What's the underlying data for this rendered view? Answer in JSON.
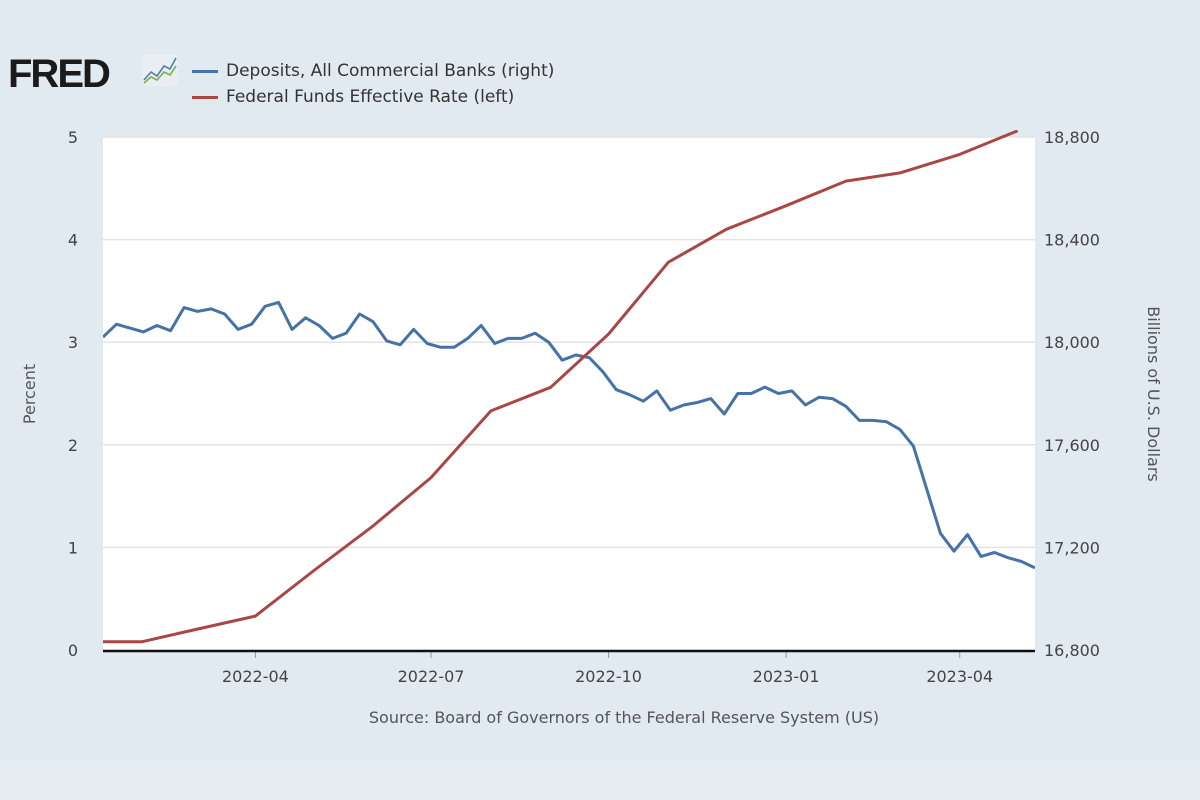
{
  "logo_text": "FRED",
  "chart_data": {
    "type": "line",
    "source": "Source: Board of Governors of the Federal Reserve System (US)",
    "ylabel_left": "Percent",
    "ylabel_right": "Billions of U.S. Dollars",
    "ylim_left": [
      0,
      5
    ],
    "ylim_right": [
      16800,
      18800
    ],
    "yticks_left": [
      "0",
      "1",
      "2",
      "3",
      "4",
      "5"
    ],
    "yticks_right": [
      "16,800",
      "17,200",
      "17,600",
      "18,000",
      "18,400",
      "18,800"
    ],
    "xlim": [
      "2022-01-12",
      "2023-05-10"
    ],
    "xticks": [
      "2022-04",
      "2022-07",
      "2022-10",
      "2023-01",
      "2023-04"
    ],
    "grid": true,
    "legend_position": "top-left",
    "series": [
      {
        "name": "Deposits, All Commercial Banks (right)",
        "axis": "right",
        "color": "#4572a7",
        "frequency": "weekly",
        "start": "2022-01-12",
        "values": [
          18020,
          18070,
          18055,
          18040,
          18065,
          18045,
          18135,
          18120,
          18130,
          18110,
          18050,
          18070,
          18140,
          18155,
          18050,
          18095,
          18065,
          18015,
          18035,
          18110,
          18080,
          18005,
          17990,
          18050,
          17995,
          17980,
          17980,
          18015,
          18065,
          17995,
          18015,
          18015,
          18035,
          18000,
          17930,
          17950,
          17940,
          17885,
          17815,
          17795,
          17770,
          17810,
          17735,
          17755,
          17765,
          17780,
          17720,
          17800,
          17800,
          17825,
          17800,
          17810,
          17755,
          17785,
          17780,
          17750,
          17695,
          17695,
          17690,
          17660,
          17595,
          17425,
          17255,
          17185,
          17250,
          17165,
          17180,
          17160,
          17145,
          17120
        ]
      },
      {
        "name": "Federal Funds Effective Rate (left)",
        "axis": "left",
        "color": "#aa4643",
        "frequency": "monthly",
        "dates": [
          "2022-01-01",
          "2022-02-01",
          "2022-03-01",
          "2022-04-01",
          "2022-05-01",
          "2022-06-01",
          "2022-07-01",
          "2022-08-01",
          "2022-09-01",
          "2022-10-01",
          "2022-11-01",
          "2022-12-01",
          "2023-01-01",
          "2023-02-01",
          "2023-03-01",
          "2023-04-01",
          "2023-05-01"
        ],
        "values": [
          0.08,
          0.08,
          0.2,
          0.33,
          0.77,
          1.21,
          1.68,
          2.33,
          2.56,
          3.08,
          3.78,
          4.1,
          4.33,
          4.57,
          4.65,
          4.83,
          5.06
        ]
      }
    ]
  }
}
